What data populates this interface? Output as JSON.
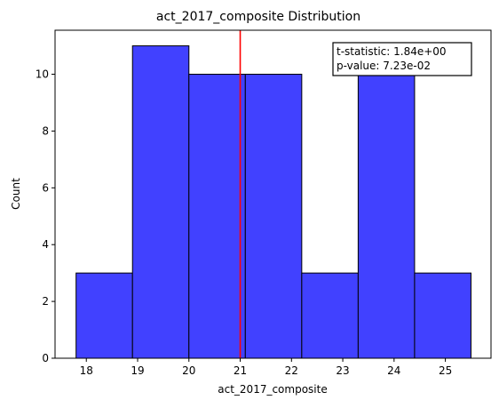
{
  "chart_data": {
    "type": "bar",
    "title": "act_2017_composite Distribution",
    "xlabel": "act_2017_composite",
    "ylabel": "Count",
    "xlim": [
      17.39,
      25.89
    ],
    "ylim": [
      0,
      11.55
    ],
    "xticks": [
      18,
      19,
      20,
      21,
      22,
      23,
      24,
      25
    ],
    "yticks": [
      0,
      2,
      4,
      6,
      8,
      10
    ],
    "bins": [
      {
        "x0": 17.8,
        "x1": 18.9,
        "count": 3
      },
      {
        "x0": 18.9,
        "x1": 20.0,
        "count": 11
      },
      {
        "x0": 20.0,
        "x1": 21.1,
        "count": 10
      },
      {
        "x0": 21.1,
        "x1": 22.2,
        "count": 10
      },
      {
        "x0": 22.2,
        "x1": 23.3,
        "count": 3
      },
      {
        "x0": 23.3,
        "x1": 24.4,
        "count": 10
      },
      {
        "x0": 24.4,
        "x1": 25.5,
        "count": 3
      }
    ],
    "vline": {
      "x": 21.0,
      "color": "#ff0000"
    },
    "bar_color": "#4141ff",
    "edge_color": "#000000",
    "annotation": {
      "line1": "t-statistic:  1.84e+00",
      "line2": "p-value:  7.23e-02"
    }
  }
}
